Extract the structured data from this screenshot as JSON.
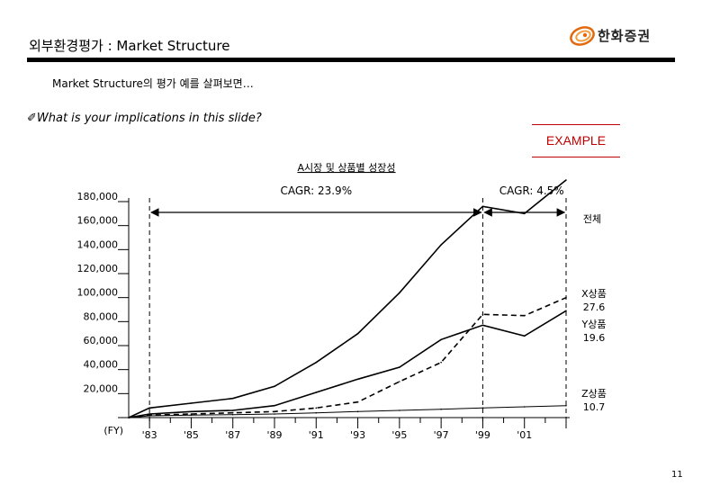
{
  "header": {
    "title": "외부환경평가 : Market Structure",
    "logo_text": "한화증권",
    "logo_icon": "hanwha-logo-icon"
  },
  "subtitle": "Market Structure의 평가 예를 살펴보면…",
  "question": "✐What is your implications in this slide?",
  "example_label": "EXAMPLE",
  "page_number": "11",
  "chart_data": {
    "type": "line",
    "title": "A시장 및 상품별 성장성",
    "xlabel": "(FY)",
    "ylabel": "",
    "categories": [
      "'83",
      "'85",
      "'87",
      "'89",
      "'91",
      "'93",
      "'95",
      "'97",
      "'99",
      "'01"
    ],
    "x": [
      1982,
      1983,
      1985,
      1987,
      1989,
      1991,
      1993,
      1995,
      1997,
      1999,
      2001,
      2003
    ],
    "ylim": [
      0,
      180000
    ],
    "yticks": [
      "180,000",
      "160,000",
      "140,000",
      "120,000",
      "100,000",
      "80,000",
      "60,000",
      "40,000",
      "20,000"
    ],
    "grid": false,
    "legend": "none",
    "series": [
      {
        "name": "전체",
        "style": "solid",
        "color": "#000000",
        "values": [
          0,
          8000,
          12000,
          16000,
          26000,
          46000,
          70000,
          104000,
          144000,
          176000,
          170000,
          198000
        ]
      },
      {
        "name": "X상품",
        "value_label": "27.6",
        "style": "dashed",
        "color": "#000000",
        "values": [
          0,
          2000,
          3000,
          4000,
          5000,
          8000,
          13000,
          30000,
          46000,
          86000,
          85000,
          100000
        ]
      },
      {
        "name": "Y상품",
        "value_label": "19.6",
        "style": "solid",
        "color": "#000000",
        "values": [
          0,
          3000,
          5000,
          6000,
          10000,
          21000,
          32000,
          42000,
          65000,
          77000,
          68000,
          89000
        ]
      },
      {
        "name": "Z상품",
        "value_label": "10.7",
        "style": "solid",
        "color": "#000000",
        "values": [
          0,
          1500,
          2000,
          2500,
          3000,
          4000,
          5000,
          6000,
          7000,
          8000,
          9000,
          10000
        ]
      }
    ],
    "annotations": [
      {
        "text": "CAGR: 23.9%",
        "from": 1983,
        "to": 1999
      },
      {
        "text": "CAGR: 4.5%",
        "from": 1999,
        "to": 2003
      }
    ]
  }
}
